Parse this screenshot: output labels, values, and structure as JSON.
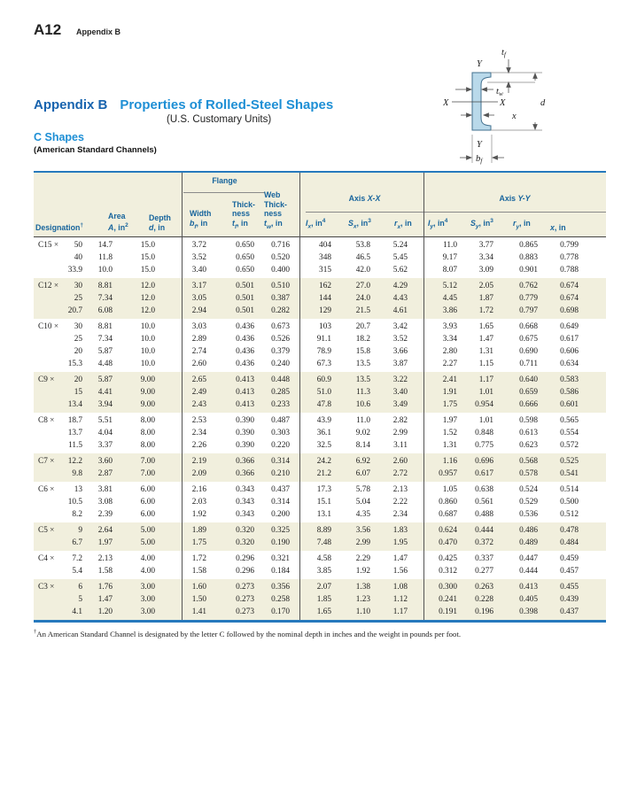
{
  "page": {
    "page_number": "A12",
    "running_head": "Appendix B"
  },
  "title": {
    "appendix_label": "Appendix B",
    "main": "Properties of Rolled-Steel Shapes",
    "subtitle": "(U.S. Customary Units)",
    "section": "C Shapes",
    "section_sub": "(American Standard Channels)"
  },
  "diagram": {
    "y_top": "Y",
    "y_bottom": "Y",
    "x_left": "X",
    "x_right": "X",
    "d": "d",
    "x_offset": "x",
    "tf_base": "t",
    "tf_sub": "f",
    "tw_base": "t",
    "tw_sub": "w",
    "bf_base": "b",
    "bf_sub": "f"
  },
  "table": {
    "group_headers": {
      "flange": "Flange",
      "axis_xx_prefix": "Axis",
      "axis_xx_var": "X-X",
      "axis_yy_prefix": "Axis",
      "axis_yy_var": "Y-Y"
    },
    "columns": [
      {
        "lines": [
          "Designation"
        ],
        "dagger": "†"
      },
      {
        "lines": [
          "Area"
        ],
        "sym": "A",
        "sub": "",
        "unit": ", in",
        "exp": "2"
      },
      {
        "lines": [
          "Depth"
        ],
        "sym": "d",
        "sub": "",
        "unit": ", in",
        "exp": ""
      },
      {
        "lines": [
          "Width"
        ],
        "sym": "b",
        "sub": "f",
        "unit": ", in",
        "exp": ""
      },
      {
        "lines": [
          "Thick-",
          "ness"
        ],
        "sym": "t",
        "sub": "f",
        "unit": ", in",
        "exp": ""
      },
      {
        "lines": [
          "Web",
          "Thick-",
          "ness"
        ],
        "sym": "t",
        "sub": "w",
        "unit": ", in",
        "exp": ""
      },
      {
        "lines": [],
        "sym": "I",
        "sub": "x",
        "unit": ", in",
        "exp": "4"
      },
      {
        "lines": [],
        "sym": "S",
        "sub": "x",
        "unit": ", in",
        "exp": "3"
      },
      {
        "lines": [],
        "sym": "r",
        "sub": "x",
        "unit": ", in",
        "exp": ""
      },
      {
        "lines": [],
        "sym": "I",
        "sub": "y",
        "unit": ", in",
        "exp": "4"
      },
      {
        "lines": [],
        "sym": "S",
        "sub": "y",
        "unit": ", in",
        "exp": "3"
      },
      {
        "lines": [],
        "sym": "r",
        "sub": "y",
        "unit": ", in",
        "exp": ""
      },
      {
        "lines": [],
        "sym": "x",
        "sub": "",
        "unit": ", in",
        "exp": ""
      }
    ],
    "groups": [
      {
        "shaded": false,
        "rows": [
          {
            "prefix": "C15 ×",
            "weight": "50",
            "vals": [
              "14.7",
              "15.0",
              "3.72",
              "0.650",
              "0.716",
              "404",
              "53.8",
              "5.24",
              "11.0",
              "3.77",
              "0.865",
              "0.799"
            ]
          },
          {
            "prefix": "",
            "weight": "40",
            "vals": [
              "11.8",
              "15.0",
              "3.52",
              "0.650",
              "0.520",
              "348",
              "46.5",
              "5.45",
              "9.17",
              "3.34",
              "0.883",
              "0.778"
            ]
          },
          {
            "prefix": "",
            "weight": "33.9",
            "vals": [
              "10.0",
              "15.0",
              "3.40",
              "0.650",
              "0.400",
              "315",
              "42.0",
              "5.62",
              "8.07",
              "3.09",
              "0.901",
              "0.788"
            ]
          }
        ]
      },
      {
        "shaded": true,
        "rows": [
          {
            "prefix": "C12 ×",
            "weight": "30",
            "vals": [
              "8.81",
              "12.0",
              "3.17",
              "0.501",
              "0.510",
              "162",
              "27.0",
              "4.29",
              "5.12",
              "2.05",
              "0.762",
              "0.674"
            ]
          },
          {
            "prefix": "",
            "weight": "25",
            "vals": [
              "7.34",
              "12.0",
              "3.05",
              "0.501",
              "0.387",
              "144",
              "24.0",
              "4.43",
              "4.45",
              "1.87",
              "0.779",
              "0.674"
            ]
          },
          {
            "prefix": "",
            "weight": "20.7",
            "vals": [
              "6.08",
              "12.0",
              "2.94",
              "0.501",
              "0.282",
              "129",
              "21.5",
              "4.61",
              "3.86",
              "1.72",
              "0.797",
              "0.698"
            ]
          }
        ]
      },
      {
        "shaded": false,
        "rows": [
          {
            "prefix": "C10 ×",
            "weight": "30",
            "vals": [
              "8.81",
              "10.0",
              "3.03",
              "0.436",
              "0.673",
              "103",
              "20.7",
              "3.42",
              "3.93",
              "1.65",
              "0.668",
              "0.649"
            ]
          },
          {
            "prefix": "",
            "weight": "25",
            "vals": [
              "7.34",
              "10.0",
              "2.89",
              "0.436",
              "0.526",
              "91.1",
              "18.2",
              "3.52",
              "3.34",
              "1.47",
              "0.675",
              "0.617"
            ]
          },
          {
            "prefix": "",
            "weight": "20",
            "vals": [
              "5.87",
              "10.0",
              "2.74",
              "0.436",
              "0.379",
              "78.9",
              "15.8",
              "3.66",
              "2.80",
              "1.31",
              "0.690",
              "0.606"
            ]
          },
          {
            "prefix": "",
            "weight": "15.3",
            "vals": [
              "4.48",
              "10.0",
              "2.60",
              "0.436",
              "0.240",
              "67.3",
              "13.5",
              "3.87",
              "2.27",
              "1.15",
              "0.711",
              "0.634"
            ]
          }
        ]
      },
      {
        "shaded": true,
        "rows": [
          {
            "prefix": "C9 ×",
            "weight": "20",
            "vals": [
              "5.87",
              "9.00",
              "2.65",
              "0.413",
              "0.448",
              "60.9",
              "13.5",
              "3.22",
              "2.41",
              "1.17",
              "0.640",
              "0.583"
            ]
          },
          {
            "prefix": "",
            "weight": "15",
            "vals": [
              "4.41",
              "9.00",
              "2.49",
              "0.413",
              "0.285",
              "51.0",
              "11.3",
              "3.40",
              "1.91",
              "1.01",
              "0.659",
              "0.586"
            ]
          },
          {
            "prefix": "",
            "weight": "13.4",
            "vals": [
              "3.94",
              "9.00",
              "2.43",
              "0.413",
              "0.233",
              "47.8",
              "10.6",
              "3.49",
              "1.75",
              "0.954",
              "0.666",
              "0.601"
            ]
          }
        ]
      },
      {
        "shaded": false,
        "rows": [
          {
            "prefix": "C8 ×",
            "weight": "18.7",
            "vals": [
              "5.51",
              "8.00",
              "2.53",
              "0.390",
              "0.487",
              "43.9",
              "11.0",
              "2.82",
              "1.97",
              "1.01",
              "0.598",
              "0.565"
            ]
          },
          {
            "prefix": "",
            "weight": "13.7",
            "vals": [
              "4.04",
              "8.00",
              "2.34",
              "0.390",
              "0.303",
              "36.1",
              "9.02",
              "2.99",
              "1.52",
              "0.848",
              "0.613",
              "0.554"
            ]
          },
          {
            "prefix": "",
            "weight": "11.5",
            "vals": [
              "3.37",
              "8.00",
              "2.26",
              "0.390",
              "0.220",
              "32.5",
              "8.14",
              "3.11",
              "1.31",
              "0.775",
              "0.623",
              "0.572"
            ]
          }
        ]
      },
      {
        "shaded": true,
        "rows": [
          {
            "prefix": "C7 ×",
            "weight": "12.2",
            "vals": [
              "3.60",
              "7.00",
              "2.19",
              "0.366",
              "0.314",
              "24.2",
              "6.92",
              "2.60",
              "1.16",
              "0.696",
              "0.568",
              "0.525"
            ]
          },
          {
            "prefix": "",
            "weight": "9.8",
            "vals": [
              "2.87",
              "7.00",
              "2.09",
              "0.366",
              "0.210",
              "21.2",
              "6.07",
              "2.72",
              "0.957",
              "0.617",
              "0.578",
              "0.541"
            ]
          }
        ]
      },
      {
        "shaded": false,
        "rows": [
          {
            "prefix": "C6 ×",
            "weight": "13",
            "vals": [
              "3.81",
              "6.00",
              "2.16",
              "0.343",
              "0.437",
              "17.3",
              "5.78",
              "2.13",
              "1.05",
              "0.638",
              "0.524",
              "0.514"
            ]
          },
          {
            "prefix": "",
            "weight": "10.5",
            "vals": [
              "3.08",
              "6.00",
              "2.03",
              "0.343",
              "0.314",
              "15.1",
              "5.04",
              "2.22",
              "0.860",
              "0.561",
              "0.529",
              "0.500"
            ]
          },
          {
            "prefix": "",
            "weight": "8.2",
            "vals": [
              "2.39",
              "6.00",
              "1.92",
              "0.343",
              "0.200",
              "13.1",
              "4.35",
              "2.34",
              "0.687",
              "0.488",
              "0.536",
              "0.512"
            ]
          }
        ]
      },
      {
        "shaded": true,
        "rows": [
          {
            "prefix": "C5 ×",
            "weight": "9",
            "vals": [
              "2.64",
              "5.00",
              "1.89",
              "0.320",
              "0.325",
              "8.89",
              "3.56",
              "1.83",
              "0.624",
              "0.444",
              "0.486",
              "0.478"
            ]
          },
          {
            "prefix": "",
            "weight": "6.7",
            "vals": [
              "1.97",
              "5.00",
              "1.75",
              "0.320",
              "0.190",
              "7.48",
              "2.99",
              "1.95",
              "0.470",
              "0.372",
              "0.489",
              "0.484"
            ]
          }
        ]
      },
      {
        "shaded": false,
        "rows": [
          {
            "prefix": "C4 ×",
            "weight": "7.2",
            "vals": [
              "2.13",
              "4.00",
              "1.72",
              "0.296",
              "0.321",
              "4.58",
              "2.29",
              "1.47",
              "0.425",
              "0.337",
              "0.447",
              "0.459"
            ]
          },
          {
            "prefix": "",
            "weight": "5.4",
            "vals": [
              "1.58",
              "4.00",
              "1.58",
              "0.296",
              "0.184",
              "3.85",
              "1.92",
              "1.56",
              "0.312",
              "0.277",
              "0.444",
              "0.457"
            ]
          }
        ]
      },
      {
        "shaded": true,
        "rows": [
          {
            "prefix": "C3 ×",
            "weight": "6",
            "vals": [
              "1.76",
              "3.00",
              "1.60",
              "0.273",
              "0.356",
              "2.07",
              "1.38",
              "1.08",
              "0.300",
              "0.263",
              "0.413",
              "0.455"
            ]
          },
          {
            "prefix": "",
            "weight": "5",
            "vals": [
              "1.47",
              "3.00",
              "1.50",
              "0.273",
              "0.258",
              "1.85",
              "1.23",
              "1.12",
              "0.241",
              "0.228",
              "0.405",
              "0.439"
            ]
          },
          {
            "prefix": "",
            "weight": "4.1",
            "vals": [
              "1.20",
              "3.00",
              "1.41",
              "0.273",
              "0.170",
              "1.65",
              "1.10",
              "1.17",
              "0.191",
              "0.196",
              "0.398",
              "0.437"
            ]
          }
        ]
      }
    ],
    "footnote_mark": "†",
    "footnote": "An American Standard Channel is designated by the letter C followed by the nominal depth in inches and the weight in pounds per foot."
  },
  "colors": {
    "table_border_blue": "#2679bd",
    "shading_beige": "#f1efdd",
    "header_text_blue": "#17649c",
    "title_dark_blue": "#1763ae",
    "title_light_blue": "#1e8fd5",
    "channel_fill": "#b9d9ea",
    "channel_stroke": "#42708f"
  }
}
